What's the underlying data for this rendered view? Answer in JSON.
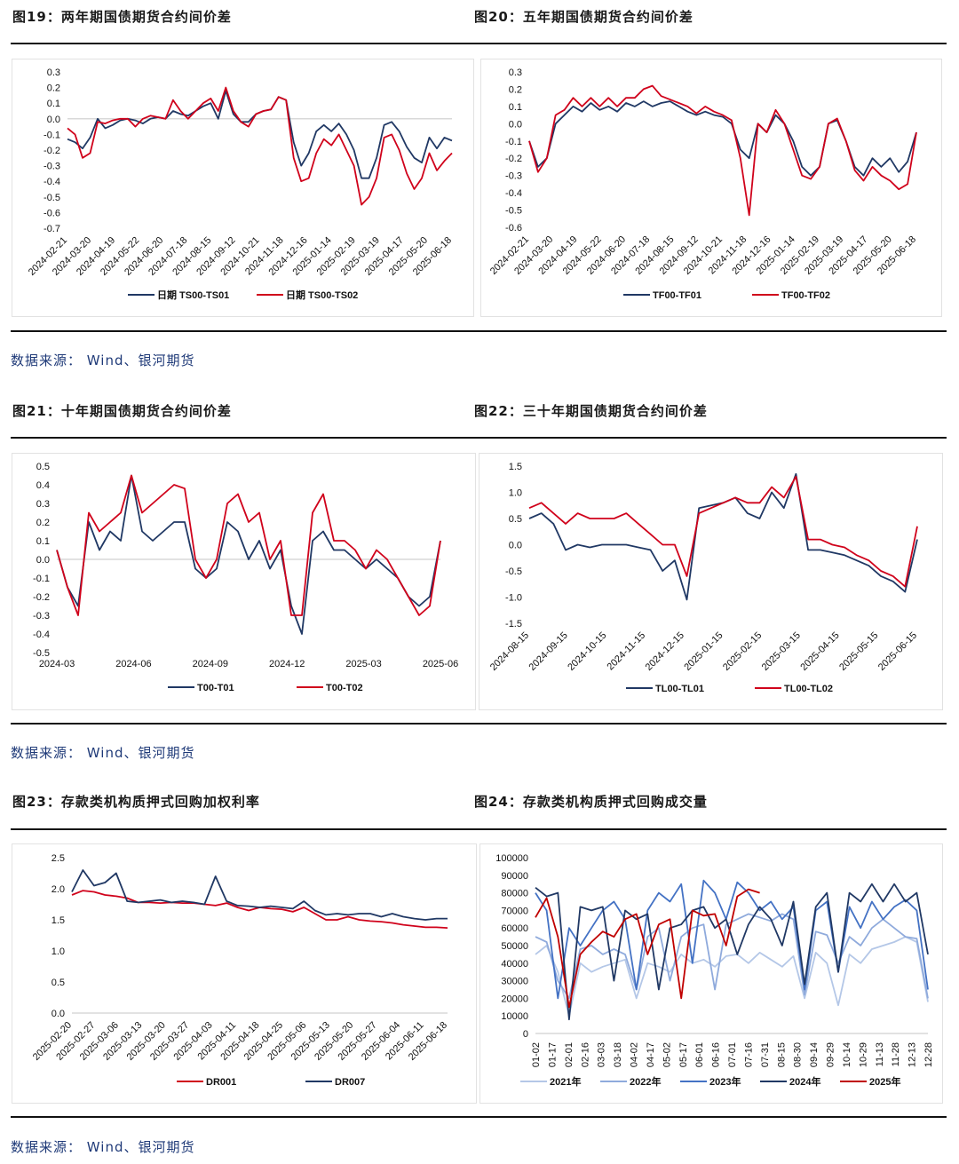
{
  "sections": [
    {
      "left_title": "图19：两年期国债期货合约间价差",
      "right_title": "图20：五年期国债期货合约间价差",
      "source": "数据来源： Wind、银河期货"
    },
    {
      "left_title": "图21：十年期国债期货合约间价差",
      "right_title": "图22：三十年期国债期货合约间价差",
      "source": "数据来源： Wind、银河期货"
    },
    {
      "left_title": "图23：存款类机构质押式回购加权利率",
      "right_title": "图24：存款类机构质押式回购成交量",
      "source": "数据来源： Wind、银河期货"
    }
  ],
  "chart_data": [
    {
      "id": "c1",
      "type": "line",
      "ylim": [
        -0.7,
        0.3
      ],
      "yticks": [
        "0.3",
        "0.2",
        "0.1",
        "0.0",
        "-0.1",
        "-0.2",
        "-0.3",
        "-0.4",
        "-0.5",
        "-0.6",
        "-0.7"
      ],
      "x_labels": [
        "2024-02-21",
        "2024-03-20",
        "2024-04-19",
        "2024-05-22",
        "2024-06-20",
        "2024-07-18",
        "2024-08-15",
        "2024-09-12",
        "2024-10-21",
        "2024-11-18",
        "2024-12-16",
        "2025-01-14",
        "2025-02-19",
        "2025-03-19",
        "2025-04-17",
        "2025-05-20",
        "2025-06-18"
      ],
      "x_rot": true,
      "zero_line": true,
      "series": [
        {
          "name": "日期 TS00-TS01",
          "color": "#203864",
          "values": [
            -0.13,
            -0.15,
            -0.19,
            -0.12,
            0.0,
            -0.06,
            -0.04,
            -0.01,
            0.0,
            -0.01,
            -0.03,
            0.0,
            0.01,
            0.0,
            0.05,
            0.03,
            0.02,
            0.05,
            0.08,
            0.1,
            0.0,
            0.18,
            0.03,
            -0.02,
            -0.02,
            0.03,
            0.05,
            0.06,
            0.14,
            0.12,
            -0.15,
            -0.3,
            -0.22,
            -0.08,
            -0.04,
            -0.08,
            -0.03,
            -0.1,
            -0.2,
            -0.38,
            -0.38,
            -0.25,
            -0.04,
            -0.02,
            -0.08,
            -0.18,
            -0.25,
            -0.28,
            -0.12,
            -0.19,
            -0.12,
            -0.14
          ]
        },
        {
          "name": "日期 TS00-TS02",
          "color": "#d0021b",
          "values": [
            -0.06,
            -0.1,
            -0.25,
            -0.22,
            -0.02,
            -0.03,
            -0.01,
            0.0,
            0.0,
            -0.05,
            0.0,
            0.02,
            0.01,
            0.0,
            0.12,
            0.05,
            0.0,
            0.05,
            0.1,
            0.13,
            0.05,
            0.2,
            0.05,
            -0.02,
            -0.05,
            0.03,
            0.05,
            0.06,
            0.14,
            0.12,
            -0.25,
            -0.4,
            -0.38,
            -0.22,
            -0.13,
            -0.17,
            -0.1,
            -0.2,
            -0.3,
            -0.55,
            -0.5,
            -0.38,
            -0.12,
            -0.1,
            -0.2,
            -0.35,
            -0.45,
            -0.38,
            -0.22,
            -0.33,
            -0.27,
            -0.22
          ]
        }
      ]
    },
    {
      "id": "c2",
      "type": "line",
      "ylim": [
        -0.6,
        0.3
      ],
      "yticks": [
        "0.3",
        "0.2",
        "0.1",
        "0.0",
        "-0.1",
        "-0.2",
        "-0.3",
        "-0.4",
        "-0.5",
        "-0.6"
      ],
      "x_labels": [
        "2024-02-21",
        "2024-03-20",
        "2024-04-19",
        "2024-05-22",
        "2024-06-20",
        "2024-07-18",
        "2024-08-15",
        "2024-09-12",
        "2024-10-21",
        "2024-11-18",
        "2024-12-16",
        "2025-01-14",
        "2025-02-19",
        "2025-03-19",
        "2025-04-17",
        "2025-05-20",
        "2025-06-18"
      ],
      "x_rot": true,
      "zero_line": false,
      "series": [
        {
          "name": "TF00-TF01",
          "color": "#203864",
          "values": [
            -0.1,
            -0.25,
            -0.2,
            0.0,
            0.05,
            0.1,
            0.07,
            0.12,
            0.08,
            0.1,
            0.07,
            0.12,
            0.1,
            0.13,
            0.1,
            0.12,
            0.13,
            0.1,
            0.07,
            0.05,
            0.07,
            0.05,
            0.04,
            0.0,
            -0.15,
            -0.2,
            0.0,
            -0.05,
            0.05,
            0.0,
            -0.1,
            -0.25,
            -0.3,
            -0.25,
            0.0,
            0.02,
            -0.1,
            -0.25,
            -0.3,
            -0.2,
            -0.25,
            -0.2,
            -0.28,
            -0.22,
            -0.05
          ]
        },
        {
          "name": "TF00-TF02",
          "color": "#d0021b",
          "values": [
            -0.1,
            -0.28,
            -0.2,
            0.05,
            0.08,
            0.15,
            0.1,
            0.15,
            0.1,
            0.15,
            0.1,
            0.15,
            0.15,
            0.2,
            0.22,
            0.16,
            0.14,
            0.12,
            0.1,
            0.06,
            0.1,
            0.07,
            0.05,
            0.02,
            -0.2,
            -0.53,
            0.0,
            -0.05,
            0.08,
            0.0,
            -0.15,
            -0.3,
            -0.32,
            -0.25,
            0.0,
            0.03,
            -0.1,
            -0.27,
            -0.33,
            -0.25,
            -0.3,
            -0.33,
            -0.38,
            -0.35,
            -0.05
          ]
        }
      ]
    },
    {
      "id": "c3",
      "type": "line",
      "ylim": [
        -0.5,
        0.5
      ],
      "yticks": [
        "0.5",
        "0.4",
        "0.3",
        "0.2",
        "0.1",
        "0.0",
        "-0.1",
        "-0.2",
        "-0.3",
        "-0.4",
        "-0.5"
      ],
      "x_labels": [
        "2024-03",
        "2024-06",
        "2024-09",
        "2024-12",
        "2025-03",
        "2025-06"
      ],
      "x_rot": false,
      "zero_line": true,
      "series": [
        {
          "name": "T00-T01",
          "color": "#203864",
          "values": [
            0.05,
            -0.15,
            -0.25,
            0.2,
            0.05,
            0.15,
            0.1,
            0.45,
            0.15,
            0.1,
            0.15,
            0.2,
            0.2,
            -0.05,
            -0.1,
            -0.05,
            0.2,
            0.15,
            0.0,
            0.1,
            -0.05,
            0.05,
            -0.25,
            -0.4,
            0.1,
            0.15,
            0.05,
            0.05,
            0.0,
            -0.05,
            0.0,
            -0.05,
            -0.1,
            -0.2,
            -0.25,
            -0.2,
            0.1
          ]
        },
        {
          "name": "T00-T02",
          "color": "#d0021b",
          "values": [
            0.05,
            -0.15,
            -0.3,
            0.25,
            0.15,
            0.2,
            0.25,
            0.45,
            0.25,
            0.3,
            0.35,
            0.4,
            0.38,
            0.0,
            -0.1,
            0.0,
            0.3,
            0.35,
            0.2,
            0.25,
            0.0,
            0.1,
            -0.3,
            -0.3,
            0.25,
            0.35,
            0.1,
            0.1,
            0.05,
            -0.05,
            0.05,
            0.0,
            -0.1,
            -0.2,
            -0.3,
            -0.25,
            0.1
          ]
        }
      ]
    },
    {
      "id": "c4",
      "type": "line",
      "ylim": [
        -1.5,
        1.5
      ],
      "yticks": [
        "1.5",
        "1.0",
        "0.5",
        "0.0",
        "-0.5",
        "-1.0",
        "-1.5"
      ],
      "x_labels": [
        "2024-08-15",
        "2024-09-15",
        "2024-10-15",
        "2024-11-15",
        "2024-12-15",
        "2025-01-15",
        "2025-02-15",
        "2025-03-15",
        "2025-04-15",
        "2025-05-15",
        "2025-06-15"
      ],
      "x_rot": true,
      "zero_line": false,
      "series": [
        {
          "name": "TL00-TL01",
          "color": "#203864",
          "values": [
            0.5,
            0.6,
            0.4,
            -0.1,
            0.0,
            -0.05,
            0.0,
            0.0,
            0.0,
            -0.05,
            -0.1,
            -0.5,
            -0.3,
            -1.05,
            0.7,
            0.75,
            0.8,
            0.9,
            0.6,
            0.5,
            1.0,
            0.7,
            1.35,
            -0.1,
            -0.1,
            -0.15,
            -0.2,
            -0.3,
            -0.4,
            -0.6,
            -0.7,
            -0.9,
            0.1
          ]
        },
        {
          "name": "TL00-TL02",
          "color": "#d0021b",
          "values": [
            0.7,
            0.8,
            0.6,
            0.4,
            0.6,
            0.5,
            0.5,
            0.5,
            0.6,
            0.4,
            0.2,
            0.0,
            0.0,
            -0.6,
            0.6,
            0.7,
            0.8,
            0.9,
            0.8,
            0.8,
            1.1,
            0.9,
            1.3,
            0.1,
            0.1,
            0.0,
            -0.05,
            -0.2,
            -0.3,
            -0.5,
            -0.6,
            -0.8,
            0.35
          ]
        }
      ]
    },
    {
      "id": "c5",
      "type": "line",
      "ylim": [
        0,
        2.5
      ],
      "yticks": [
        "2.5",
        "2.0",
        "1.5",
        "1.0",
        "0.5",
        "0.0"
      ],
      "x_labels": [
        "2025-02-20",
        "2025-02-27",
        "2025-03-06",
        "2025-03-13",
        "2025-03-20",
        "2025-03-27",
        "2025-04-03",
        "2025-04-11",
        "2025-04-18",
        "2025-04-25",
        "2025-05-06",
        "2025-05-13",
        "2025-05-20",
        "2025-05-27",
        "2025-06-04",
        "2025-06-11",
        "2025-06-18"
      ],
      "x_rot": true,
      "zero_line": true,
      "series": [
        {
          "name": "DR001",
          "color": "#d0021b",
          "values": [
            1.9,
            1.97,
            1.95,
            1.9,
            1.88,
            1.85,
            1.78,
            1.78,
            1.77,
            1.78,
            1.77,
            1.77,
            1.75,
            1.73,
            1.77,
            1.7,
            1.65,
            1.7,
            1.68,
            1.67,
            1.63,
            1.7,
            1.6,
            1.5,
            1.5,
            1.55,
            1.5,
            1.48,
            1.47,
            1.45,
            1.42,
            1.4,
            1.38,
            1.38,
            1.37
          ]
        },
        {
          "name": "DR007",
          "color": "#203864",
          "values": [
            1.95,
            2.3,
            2.05,
            2.1,
            2.25,
            1.8,
            1.78,
            1.8,
            1.82,
            1.78,
            1.8,
            1.78,
            1.75,
            2.2,
            1.8,
            1.73,
            1.72,
            1.7,
            1.72,
            1.7,
            1.68,
            1.8,
            1.65,
            1.58,
            1.6,
            1.58,
            1.6,
            1.6,
            1.55,
            1.6,
            1.55,
            1.52,
            1.5,
            1.52,
            1.52
          ]
        }
      ]
    },
    {
      "id": "c6",
      "type": "line",
      "ylim": [
        0,
        100000
      ],
      "n_points": 36,
      "yticks": [
        "100000",
        "90000",
        "80000",
        "70000",
        "60000",
        "50000",
        "40000",
        "30000",
        "20000",
        "10000",
        "0"
      ],
      "x_labels": [
        "01-02",
        "01-17",
        "02-01",
        "02-16",
        "03-03",
        "03-18",
        "04-02",
        "04-17",
        "05-02",
        "05-17",
        "06-01",
        "06-16",
        "07-01",
        "07-16",
        "07-31",
        "08-15",
        "08-30",
        "09-14",
        "09-29",
        "10-14",
        "10-29",
        "11-13",
        "11-28",
        "12-13",
        "12-28"
      ],
      "x_rot": "vertical",
      "zero_line": true,
      "series": [
        {
          "name": "2021年",
          "color": "#b4c7e7",
          "values": [
            45000,
            50000,
            35000,
            10000,
            40000,
            35000,
            38000,
            40000,
            42000,
            20000,
            40000,
            38000,
            35000,
            45000,
            40000,
            42000,
            38000,
            44000,
            45000,
            40000,
            46000,
            42000,
            38000,
            44000,
            20000,
            46000,
            40000,
            16000,
            45000,
            40000,
            48000,
            50000,
            52000,
            55000,
            52000,
            18000
          ]
        },
        {
          "name": "2022年",
          "color": "#8faadc",
          "values": [
            55000,
            52000,
            30000,
            20000,
            48000,
            50000,
            45000,
            48000,
            45000,
            25000,
            55000,
            60000,
            30000,
            55000,
            60000,
            62000,
            25000,
            62000,
            65000,
            68000,
            66000,
            64000,
            68000,
            65000,
            22000,
            58000,
            56000,
            40000,
            55000,
            50000,
            60000,
            65000,
            60000,
            55000,
            54000,
            20000
          ]
        },
        {
          "name": "2023年",
          "color": "#4472c4",
          "values": [
            80000,
            70000,
            20000,
            60000,
            50000,
            60000,
            70000,
            75000,
            65000,
            25000,
            70000,
            80000,
            75000,
            85000,
            40000,
            87000,
            80000,
            65000,
            86000,
            80000,
            70000,
            75000,
            65000,
            72000,
            25000,
            70000,
            75000,
            35000,
            72000,
            60000,
            75000,
            65000,
            72000,
            76000,
            70000,
            25000
          ]
        },
        {
          "name": "2024年",
          "color": "#203864",
          "values": [
            83000,
            78000,
            80000,
            8000,
            72000,
            70000,
            72000,
            30000,
            70000,
            65000,
            68000,
            25000,
            60000,
            62000,
            70000,
            72000,
            60000,
            65000,
            45000,
            62000,
            72000,
            65000,
            50000,
            75000,
            28000,
            72000,
            80000,
            35000,
            80000,
            75000,
            85000,
            75000,
            85000,
            75000,
            80000,
            45000
          ]
        },
        {
          "name": "2025年",
          "color": "#c00000",
          "values": [
            66000,
            77000,
            55000,
            15000,
            45000,
            52000,
            58000,
            55000,
            65000,
            68000,
            45000,
            62000,
            65000,
            20000,
            70000,
            67000,
            68000,
            50000,
            78000,
            82000,
            80000
          ]
        }
      ]
    }
  ]
}
